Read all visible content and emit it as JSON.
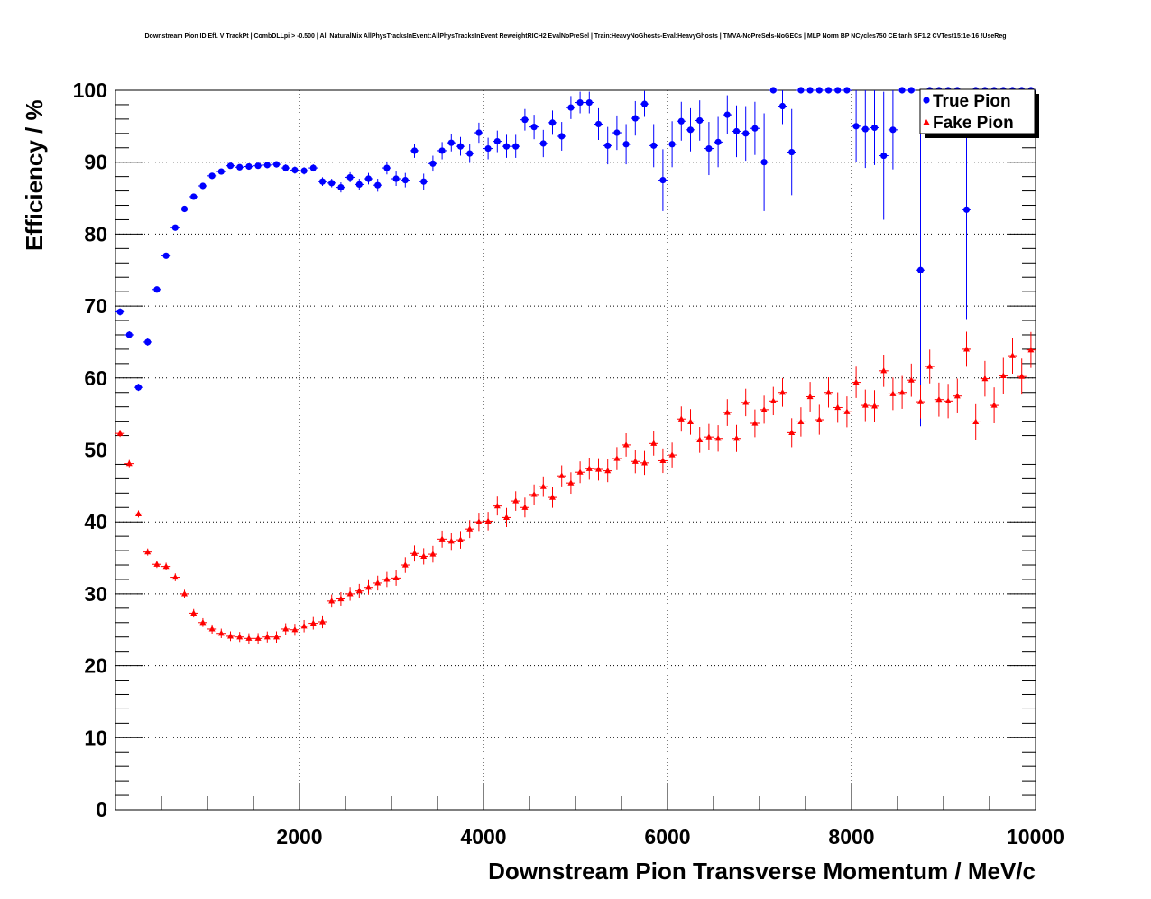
{
  "chart_data": {
    "type": "scatter",
    "title": "Downstream Pion ID Eff. V TrackPt | CombDLLpi > -0.500 | All NaturalMix AllPhysTracksInEvent:AllPhysTracksInEvent ReweightRICH2 EvalNoPreSel | Train:HeavyNoGhosts-Eval:HeavyGhosts | TMVA-NoPreSels-NoGECs | MLP Norm BP NCycles750 CE tanh SF1.2 CVTest15:1e-16 !UseReg",
    "xlabel": "Downstream Pion Transverse Momentum / MeV/c",
    "ylabel": "Efficiency / %",
    "xlim": [
      0,
      10000
    ],
    "ylim": [
      0,
      100
    ],
    "x_tick_labels": [
      "2000",
      "4000",
      "6000",
      "8000",
      "10000"
    ],
    "y_tick_labels": [
      "0",
      "10",
      "20",
      "30",
      "40",
      "50",
      "60",
      "70",
      "80",
      "90",
      "100"
    ],
    "grid": true,
    "legend_position": "top-right",
    "bin_width": 100,
    "series": [
      {
        "name": "True Pion",
        "color": "#0000ff",
        "marker": "circle",
        "x": [
          50,
          150,
          250,
          350,
          450,
          550,
          650,
          750,
          850,
          950,
          1050,
          1150,
          1250,
          1350,
          1450,
          1550,
          1650,
          1750,
          1850,
          1950,
          2050,
          2150,
          2250,
          2350,
          2450,
          2550,
          2650,
          2750,
          2850,
          2950,
          3050,
          3150,
          3250,
          3350,
          3450,
          3550,
          3650,
          3750,
          3850,
          3950,
          4050,
          4150,
          4250,
          4350,
          4450,
          4550,
          4650,
          4750,
          4850,
          4950,
          5050,
          5150,
          5250,
          5350,
          5450,
          5550,
          5650,
          5750,
          5850,
          5950,
          6050,
          6150,
          6250,
          6350,
          6450,
          6550,
          6650,
          6750,
          6850,
          6950,
          7050,
          7150,
          7250,
          7350,
          7450,
          7550,
          7650,
          7750,
          7850,
          7950,
          8050,
          8150,
          8250,
          8350,
          8450,
          8550,
          8650,
          8750,
          8850,
          8950,
          9050,
          9150,
          9250,
          9350,
          9450,
          9550,
          9650,
          9750,
          9850,
          9950
        ],
        "y": [
          69.2,
          66.0,
          58.7,
          65.0,
          72.3,
          77.0,
          80.9,
          83.5,
          85.2,
          86.7,
          88.1,
          88.7,
          89.5,
          89.3,
          89.4,
          89.5,
          89.6,
          89.7,
          89.2,
          88.9,
          88.8,
          89.2,
          87.3,
          87.1,
          86.5,
          87.9,
          86.9,
          87.7,
          86.8,
          89.2,
          87.7,
          87.5,
          91.6,
          87.3,
          89.8,
          91.6,
          92.7,
          92.2,
          91.2,
          94.1,
          91.9,
          92.9,
          92.2,
          92.2,
          95.9,
          94.9,
          92.6,
          95.5,
          93.6,
          97.6,
          98.3,
          98.3,
          95.3,
          92.3,
          94.1,
          92.5,
          96.1,
          98.1,
          92.3,
          87.5,
          92.5,
          95.7,
          94.5,
          95.8,
          91.9,
          92.8,
          96.6,
          94.3,
          94.0,
          94.7,
          90.0,
          100,
          97.8,
          91.4,
          100,
          100,
          100,
          100,
          100,
          100,
          95.0,
          94.6,
          94.8,
          90.9,
          94.5,
          100,
          100,
          75.0,
          100,
          100,
          100,
          100,
          83.4,
          100,
          100,
          100,
          100,
          100,
          100,
          100
        ],
        "y_err": [
          0.5,
          0.5,
          0.5,
          0.5,
          0.4,
          0.4,
          0.4,
          0.4,
          0.4,
          0.4,
          0.4,
          0.4,
          0.4,
          0.4,
          0.4,
          0.4,
          0.4,
          0.4,
          0.5,
          0.5,
          0.5,
          0.5,
          0.6,
          0.6,
          0.7,
          0.7,
          0.8,
          0.8,
          0.9,
          0.9,
          1.0,
          1.0,
          1.0,
          1.1,
          1.1,
          1.2,
          1.2,
          1.3,
          1.3,
          1.4,
          1.5,
          1.5,
          1.6,
          1.6,
          1.5,
          1.7,
          1.9,
          1.7,
          2.0,
          1.6,
          1.5,
          1.5,
          2.2,
          2.6,
          2.4,
          2.8,
          2.4,
          1.8,
          3.0,
          4.3,
          3.2,
          2.7,
          3.0,
          2.8,
          3.7,
          3.5,
          2.7,
          3.6,
          3.8,
          3.7,
          6.8,
          0,
          2.5,
          6.0,
          0,
          0,
          0,
          0,
          0,
          0,
          5.0,
          5.4,
          5.2,
          8.9,
          5.5,
          0,
          0,
          21.7,
          0,
          0,
          0,
          0,
          15.2,
          0,
          0,
          0,
          0,
          0,
          0,
          0
        ]
      },
      {
        "name": "Fake Pion",
        "color": "#ff0000",
        "marker": "triangle",
        "x": [
          50,
          150,
          250,
          350,
          450,
          550,
          650,
          750,
          850,
          950,
          1050,
          1150,
          1250,
          1350,
          1450,
          1550,
          1650,
          1750,
          1850,
          1950,
          2050,
          2150,
          2250,
          2350,
          2450,
          2550,
          2650,
          2750,
          2850,
          2950,
          3050,
          3150,
          3250,
          3350,
          3450,
          3550,
          3650,
          3750,
          3850,
          3950,
          4050,
          4150,
          4250,
          4350,
          4450,
          4550,
          4650,
          4750,
          4850,
          4950,
          5050,
          5150,
          5250,
          5350,
          5450,
          5550,
          5650,
          5750,
          5850,
          5950,
          6050,
          6150,
          6250,
          6350,
          6450,
          6550,
          6650,
          6750,
          6850,
          6950,
          7050,
          7150,
          7250,
          7350,
          7450,
          7550,
          7650,
          7750,
          7850,
          7950,
          8050,
          8150,
          8250,
          8350,
          8450,
          8550,
          8650,
          8750,
          8850,
          8950,
          9050,
          9150,
          9250,
          9350,
          9450,
          9550,
          9650,
          9750,
          9850,
          9950
        ],
        "y": [
          52.3,
          48.1,
          41.1,
          35.8,
          34.1,
          33.8,
          32.3,
          30.0,
          27.3,
          26.0,
          25.1,
          24.5,
          24.1,
          24.0,
          23.8,
          23.8,
          24.0,
          24.0,
          25.1,
          25.0,
          25.5,
          25.9,
          26.1,
          29.0,
          29.3,
          30.0,
          30.4,
          30.9,
          31.5,
          32.0,
          32.2,
          34.0,
          35.6,
          35.2,
          35.5,
          37.6,
          37.3,
          37.5,
          39.0,
          40.0,
          40.1,
          42.2,
          40.6,
          42.9,
          42.0,
          43.8,
          44.9,
          43.4,
          46.4,
          45.4,
          46.9,
          47.4,
          47.3,
          47.1,
          48.8,
          50.7,
          48.4,
          48.2,
          50.9,
          48.5,
          49.3,
          54.3,
          53.9,
          51.4,
          51.8,
          51.6,
          55.2,
          51.6,
          56.6,
          53.7,
          55.6,
          56.8,
          58.0,
          52.4,
          53.9,
          57.4,
          54.2,
          58.0,
          55.9,
          55.3,
          59.4,
          56.2,
          56.1,
          61.0,
          57.8,
          58.0,
          59.7,
          56.7,
          61.6,
          57.0,
          56.8,
          57.5,
          64.0,
          53.9,
          59.9,
          56.2,
          60.3,
          63.1,
          60.2,
          63.9
        ]
      }
    ]
  },
  "legend": {
    "items": [
      "True Pion",
      "Fake Pion"
    ]
  }
}
